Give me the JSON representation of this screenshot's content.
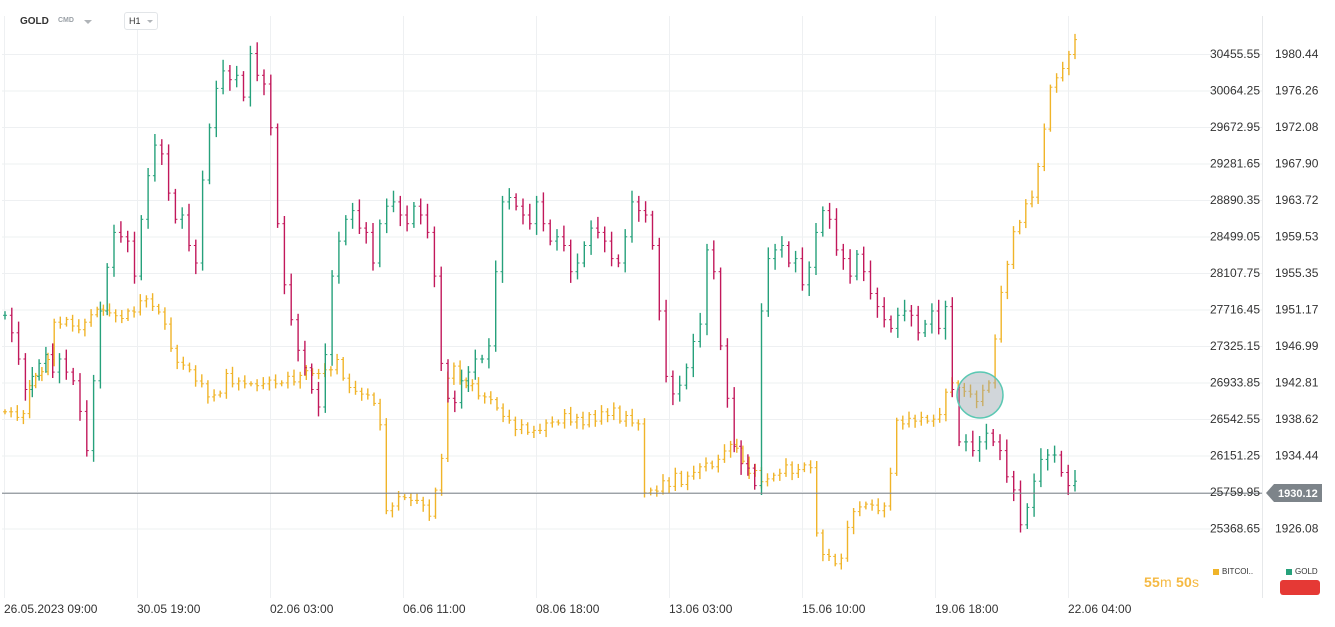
{
  "header": {
    "symbol": "GOLD",
    "symbol_type": "CMD",
    "timeframe": "H1"
  },
  "colors": {
    "up": "#26a17b",
    "down": "#c2185b",
    "bitcoin": "#f0b429",
    "accent": "#f5b942",
    "tag_bg": "#7d848a",
    "red_button": "#e53935",
    "marker": "#5bc8b3"
  },
  "chart_data": {
    "type": "line",
    "title": "",
    "xlabel": "",
    "ylabel": "",
    "x_ticks": [
      "26.05.2023  09:00",
      "30.05  19:00",
      "02.06  03:00",
      "06.06  11:00",
      "08.06  18:00",
      "13.06  03:00",
      "15.06  10:00",
      "19.06  18:00",
      "22.06  04:00"
    ],
    "y_ticks_left": [
      "30455.55",
      "30064.25",
      "29672.95",
      "29281.65",
      "28890.35",
      "28499.05",
      "28107.75",
      "27716.45",
      "27325.15",
      "26933.85",
      "26542.55",
      "26151.25",
      "25759.95",
      "25368.65"
    ],
    "y_ticks_right": [
      "1980.44",
      "1976.26",
      "1972.08",
      "1967.90",
      "1963.72",
      "1959.53",
      "1955.35",
      "1951.17",
      "1946.99",
      "1942.81",
      "1938.62",
      "1934.44",
      "1930.12",
      "1926.08"
    ],
    "ylim_left": [
      24900,
      30650
    ],
    "ylim_right": [
      1921.1,
      1982.5
    ],
    "current_price": "1930.12",
    "series": [
      {
        "name": "GOLD",
        "axis": "right",
        "style": "ohlc-bars",
        "values": [
          1950.5,
          1948.5,
          1945.5,
          1942.0,
          1943.5,
          1945.0,
          1946.0,
          1944.0,
          1945.5,
          1944.0,
          1943.0,
          1939.5,
          1935.0,
          1943.0,
          1951.0,
          1956.0,
          1960.0,
          1959.5,
          1959.0,
          1955.0,
          1961.5,
          1966.5,
          1970.0,
          1969.0,
          1964.5,
          1961.5,
          1962.0,
          1958.5,
          1956.5,
          1966.0,
          1972.0,
          1976.5,
          1978.5,
          1977.5,
          1978.0,
          1975.5,
          1980.5,
          1978.0,
          1977.0,
          1972.0,
          1961.0,
          1954.0,
          1950.0,
          1946.5,
          1944.5,
          1942.0,
          1940.0,
          1946.0,
          1955.0,
          1959.0,
          1961.5,
          1962.5,
          1960.5,
          1960.0,
          1956.5,
          1961.0,
          1963.0,
          1963.5,
          1962.0,
          1961.0,
          1963.0,
          1962.0,
          1960.0,
          1955.0,
          1945.0,
          1941.0,
          1940.5,
          1943.0,
          1944.0,
          1945.5,
          1945.5,
          1947.0,
          1955.5,
          1963.5,
          1964.0,
          1963.0,
          1962.0,
          1961.0,
          1963.5,
          1961.0,
          1959.0,
          1959.5,
          1958.5,
          1955.5,
          1956.5,
          1958.5,
          1960.5,
          1960.0,
          1959.0,
          1957.0,
          1956.5,
          1959.5,
          1963.5,
          1962.5,
          1962.0,
          1958.5,
          1951.0,
          1943.5,
          1941.5,
          1942.5,
          1944.5,
          1947.5,
          1949.5,
          1958.0,
          1955.5,
          1947.0,
          1941.0,
          1935.5,
          1933.5,
          1933.0,
          1931.0,
          1951.0,
          1957.0,
          1958.0,
          1958.5,
          1956.5,
          1957.0,
          1954.0,
          1956.0,
          1960.0,
          1962.5,
          1961.5,
          1958.0,
          1957.0,
          1955.0,
          1957.5,
          1955.5,
          1953.0,
          1951.5,
          1950.0,
          1949.0,
          1950.5,
          1951.0,
          1950.5,
          1948.5,
          1949.5,
          1951.0,
          1949.0,
          1951.5,
          1942.0,
          1936.0,
          1936.0,
          1935.0,
          1936.0,
          1937.0,
          1936.0,
          1935.0,
          1932.0,
          1930.5,
          1926.5,
          1928.5,
          1931.5,
          1934.0,
          1934.5,
          1934.5,
          1932.5,
          1931.0,
          1931.5
        ]
      },
      {
        "name": "BITCOI..",
        "axis": "left",
        "style": "ohlc-bars",
        "values": [
          26620,
          26620,
          26560,
          26600,
          26900,
          27010,
          27050,
          27180,
          27580,
          27560,
          27610,
          27540,
          27500,
          27580,
          27660,
          27720,
          27710,
          27680,
          27650,
          27620,
          27700,
          27690,
          27810,
          27830,
          27750,
          27690,
          27560,
          27300,
          27150,
          27120,
          27070,
          26950,
          26920,
          26780,
          26800,
          26820,
          27030,
          26920,
          26950,
          26920,
          26920,
          26900,
          26920,
          26960,
          26920,
          26930,
          27000,
          26940,
          27010,
          27060,
          27030,
          27030,
          27070,
          27070,
          27180,
          26980,
          26880,
          26840,
          26810,
          26800,
          26710,
          26480,
          25560,
          25610,
          25710,
          25700,
          25670,
          25670,
          25620,
          25500,
          25780,
          26120,
          26980,
          27110,
          26960,
          26900,
          26920,
          26790,
          26780,
          26750,
          26660,
          26570,
          26530,
          26430,
          26480,
          26400,
          26420,
          26420,
          26500,
          26510,
          26500,
          26600,
          26510,
          26560,
          26480,
          26590,
          26520,
          26620,
          26580,
          26660,
          26520,
          26580,
          26500,
          26490,
          25750,
          25780,
          25770,
          25880,
          25820,
          25960,
          25840,
          25930,
          25970,
          26030,
          26070,
          26030,
          26110,
          26200,
          26270,
          26230,
          26090,
          25960,
          25990,
          25870,
          25900,
          25940,
          25960,
          26050,
          25960,
          26000,
          26050,
          26020,
          25320,
          25090,
          25070,
          24990,
          25050,
          25380,
          25550,
          25600,
          25630,
          25620,
          25560,
          25610,
          25960,
          26530,
          26490,
          26550,
          26520,
          26560,
          26520,
          26540,
          26590,
          26830,
          26930,
          26880,
          26840,
          26810,
          26730,
          26850,
          26930,
          27400,
          27900,
          28200,
          28550,
          28650,
          28850,
          28920,
          29250,
          29650,
          30100,
          30200,
          30300,
          30450,
          30610
        ]
      }
    ]
  },
  "countdown": {
    "minutes": "55",
    "m_unit": "m",
    "seconds": "50",
    "s_unit": "s"
  },
  "legend": {
    "bitcoin_label": "BITCOI..",
    "gold_label": "GOLD"
  }
}
